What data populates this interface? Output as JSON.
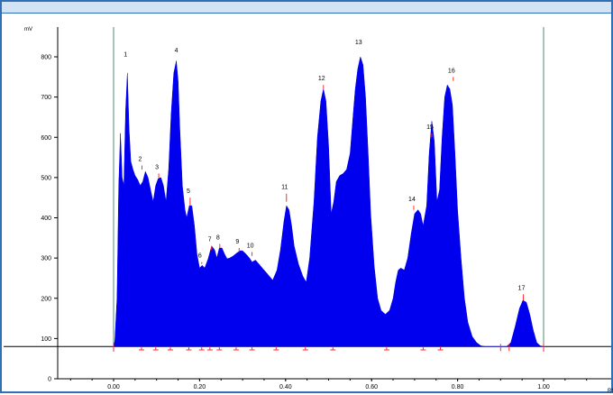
{
  "chart_data": {
    "type": "area",
    "title": "",
    "xlabel": "",
    "ylabel": "",
    "x_axis_unit_fragment": "RS",
    "y_axis_unit_fragment": "mV",
    "xlim": [
      -0.13,
      1.15
    ],
    "ylim": [
      0,
      860
    ],
    "x_ticks": [
      {
        "v": 0.0,
        "label": "0.00"
      },
      {
        "v": 0.2,
        "label": "0.20"
      },
      {
        "v": 0.4,
        "label": "0.40"
      },
      {
        "v": 0.6,
        "label": "0.60"
      },
      {
        "v": 0.8,
        "label": "0.80"
      },
      {
        "v": 1.0,
        "label": "1.00"
      }
    ],
    "y_ticks": [
      0,
      100,
      200,
      300,
      400,
      500,
      600,
      700,
      800
    ],
    "baseline": 80,
    "region_bounds": [
      0.0,
      1.0
    ],
    "series": [
      {
        "color": "#0000ee",
        "x": [
          0.0,
          0.003,
          0.008,
          0.012,
          0.016,
          0.02,
          0.024,
          0.028,
          0.032,
          0.036,
          0.04,
          0.045,
          0.05,
          0.056,
          0.062,
          0.068,
          0.074,
          0.08,
          0.086,
          0.092,
          0.098,
          0.104,
          0.11,
          0.116,
          0.122,
          0.128,
          0.134,
          0.14,
          0.146,
          0.15,
          0.154,
          0.16,
          0.166,
          0.17,
          0.176,
          0.182,
          0.188,
          0.194,
          0.2,
          0.206,
          0.212,
          0.22,
          0.228,
          0.235,
          0.24,
          0.246,
          0.252,
          0.258,
          0.264,
          0.27,
          0.278,
          0.286,
          0.294,
          0.3,
          0.308,
          0.316,
          0.322,
          0.33,
          0.338,
          0.346,
          0.354,
          0.362,
          0.37,
          0.38,
          0.388,
          0.396,
          0.402,
          0.408,
          0.414,
          0.42,
          0.43,
          0.44,
          0.448,
          0.456,
          0.466,
          0.474,
          0.482,
          0.488,
          0.494,
          0.5,
          0.506,
          0.512,
          0.518,
          0.526,
          0.534,
          0.542,
          0.55,
          0.556,
          0.562,
          0.568,
          0.574,
          0.58,
          0.586,
          0.592,
          0.598,
          0.606,
          0.614,
          0.622,
          0.632,
          0.642,
          0.65,
          0.656,
          0.662,
          0.668,
          0.676,
          0.684,
          0.692,
          0.7,
          0.708,
          0.714,
          0.72,
          0.728,
          0.734,
          0.74,
          0.746,
          0.752,
          0.758,
          0.764,
          0.77,
          0.776,
          0.782,
          0.788,
          0.794,
          0.8,
          0.808,
          0.816,
          0.824,
          0.834,
          0.844,
          0.854,
          0.864,
          0.874,
          0.884,
          0.894,
          0.904,
          0.914,
          0.924,
          0.934,
          0.944,
          0.952,
          0.96,
          0.968,
          0.976,
          0.984,
          0.992,
          1.0
        ],
        "y": [
          80,
          95,
          200,
          480,
          610,
          500,
          480,
          670,
          760,
          620,
          540,
          520,
          505,
          495,
          480,
          490,
          515,
          500,
          470,
          440,
          480,
          498,
          500,
          480,
          440,
          520,
          660,
          760,
          790,
          740,
          620,
          480,
          420,
          400,
          430,
          430,
          380,
          310,
          275,
          282,
          275,
          298,
          330,
          320,
          300,
          325,
          325,
          310,
          298,
          300,
          305,
          312,
          318,
          318,
          310,
          300,
          290,
          295,
          285,
          275,
          265,
          255,
          245,
          270,
          320,
          390,
          430,
          420,
          380,
          330,
          285,
          255,
          240,
          300,
          440,
          600,
          690,
          720,
          690,
          580,
          410,
          440,
          490,
          505,
          510,
          520,
          560,
          640,
          720,
          770,
          800,
          780,
          700,
          560,
          410,
          280,
          200,
          170,
          160,
          170,
          200,
          240,
          270,
          275,
          270,
          300,
          360,
          410,
          420,
          410,
          380,
          430,
          560,
          640,
          590,
          440,
          470,
          600,
          700,
          730,
          720,
          680,
          560,
          420,
          300,
          200,
          140,
          105,
          90,
          82,
          80,
          80,
          80,
          80,
          80,
          80,
          90,
          130,
          175,
          195,
          190,
          160,
          120,
          90,
          82,
          80
        ]
      }
    ],
    "peak_labels": [
      {
        "id": "1",
        "x": 0.032,
        "y": 790
      },
      {
        "id": "2",
        "x": 0.066,
        "y": 520
      },
      {
        "id": "3",
        "x": 0.105,
        "y": 500
      },
      {
        "id": "4",
        "x": 0.15,
        "y": 800
      },
      {
        "id": "5",
        "x": 0.178,
        "y": 430
      },
      {
        "id": "6",
        "x": 0.205,
        "y": 285
      },
      {
        "id": "7",
        "x": 0.228,
        "y": 320
      },
      {
        "id": "8",
        "x": 0.247,
        "y": 325
      },
      {
        "id": "9",
        "x": 0.292,
        "y": 315
      },
      {
        "id": "10",
        "x": 0.322,
        "y": 305
      },
      {
        "id": "11",
        "x": 0.402,
        "y": 440
      },
      {
        "id": "12",
        "x": 0.488,
        "y": 720
      },
      {
        "id": "13",
        "x": 0.574,
        "y": 820
      },
      {
        "id": "14",
        "x": 0.698,
        "y": 420
      },
      {
        "id": "15",
        "x": 0.74,
        "y": 600
      },
      {
        "id": "16",
        "x": 0.79,
        "y": 740
      },
      {
        "id": "17",
        "x": 0.953,
        "y": 195
      }
    ],
    "dividers": [
      0.065,
      0.098,
      0.132,
      0.175,
      0.205,
      0.224,
      0.246,
      0.285,
      0.322,
      0.378,
      0.446,
      0.51,
      0.635,
      0.72,
      0.76
    ],
    "peak_marker_heights": [
      790,
      530,
      510,
      800,
      450,
      290,
      330,
      335,
      325,
      315,
      460,
      730,
      820,
      430,
      610,
      750,
      210
    ]
  }
}
